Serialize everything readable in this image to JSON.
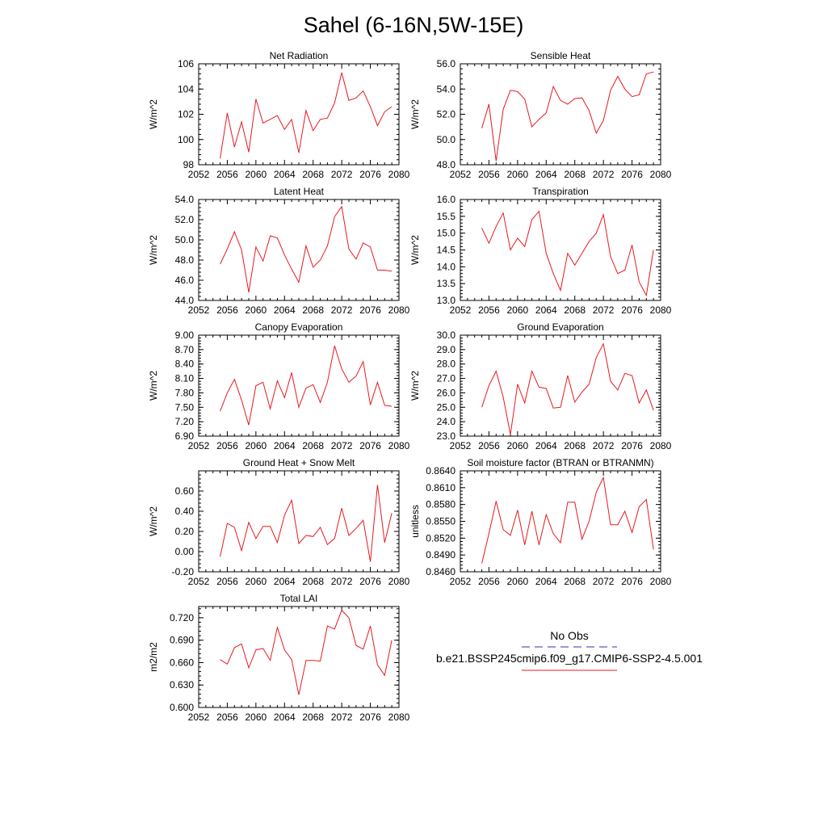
{
  "title": "Sahel (6-16N,5W-15E)",
  "x_ticks": [
    "2052",
    "2056",
    "2060",
    "2064",
    "2068",
    "2072",
    "2076",
    "2080"
  ],
  "line_color": "#e8191f",
  "chart_data": [
    {
      "type": "line",
      "title": "Net Radiation",
      "ylabel": "W/m^2",
      "xlim": [
        2052,
        2080
      ],
      "ylim": [
        98,
        106
      ],
      "yticks": [
        "98",
        "100",
        "102",
        "104",
        "106"
      ],
      "x": [
        2055,
        2056,
        2057,
        2058,
        2059,
        2060,
        2061,
        2062,
        2063,
        2064,
        2065,
        2066,
        2067,
        2068,
        2069,
        2070,
        2071,
        2072,
        2073,
        2074,
        2075,
        2076,
        2077,
        2078,
        2079
      ],
      "values": [
        98.5,
        102.1,
        99.4,
        101.4,
        99.0,
        103.2,
        101.3,
        101.6,
        101.9,
        100.8,
        101.6,
        98.95,
        102.3,
        100.7,
        101.6,
        101.7,
        102.9,
        105.3,
        103.1,
        103.3,
        103.85,
        102.6,
        101.1,
        102.2,
        102.6
      ]
    },
    {
      "type": "line",
      "title": "Sensible Heat",
      "ylabel": "W/m^2",
      "xlim": [
        2052,
        2080
      ],
      "ylim": [
        48,
        56
      ],
      "yticks": [
        "48.0",
        "50.0",
        "52.0",
        "54.0",
        "56.0"
      ],
      "x": [
        2055,
        2056,
        2057,
        2058,
        2059,
        2060,
        2061,
        2062,
        2063,
        2064,
        2065,
        2066,
        2067,
        2068,
        2069,
        2070,
        2071,
        2072,
        2073,
        2074,
        2075,
        2076,
        2077,
        2078,
        2079
      ],
      "values": [
        50.9,
        52.8,
        48.3,
        52.4,
        53.9,
        53.8,
        53.2,
        51.0,
        51.6,
        52.1,
        54.2,
        53.1,
        52.8,
        53.25,
        53.3,
        52.3,
        50.5,
        51.5,
        53.9,
        55.0,
        54.0,
        53.4,
        53.55,
        55.2,
        55.35
      ]
    },
    {
      "type": "line",
      "title": "Latent Heat",
      "ylabel": "W/m^2",
      "xlim": [
        2052,
        2080
      ],
      "ylim": [
        44,
        54
      ],
      "yticks": [
        "44.0",
        "46.0",
        "48.0",
        "50.0",
        "52.0",
        "54.0"
      ],
      "x": [
        2055,
        2056,
        2057,
        2058,
        2059,
        2060,
        2061,
        2062,
        2063,
        2064,
        2065,
        2066,
        2067,
        2068,
        2069,
        2070,
        2071,
        2072,
        2073,
        2074,
        2075,
        2076,
        2077,
        2078,
        2079
      ],
      "values": [
        47.6,
        49.1,
        50.8,
        49.0,
        44.8,
        49.3,
        47.9,
        50.4,
        50.2,
        48.5,
        47.1,
        45.8,
        49.4,
        47.3,
        48.0,
        49.4,
        52.3,
        53.3,
        49.1,
        48.1,
        49.7,
        49.3,
        47.0,
        47.0,
        46.9
      ]
    },
    {
      "type": "line",
      "title": "Transpiration",
      "ylabel": "W/m^2",
      "xlim": [
        2052,
        2080
      ],
      "ylim": [
        13,
        16
      ],
      "yticks": [
        "13.0",
        "13.5",
        "14.0",
        "14.5",
        "15.0",
        "15.5",
        "16.0"
      ],
      "x": [
        2055,
        2056,
        2057,
        2058,
        2059,
        2060,
        2061,
        2062,
        2063,
        2064,
        2065,
        2066,
        2067,
        2068,
        2069,
        2070,
        2071,
        2072,
        2073,
        2074,
        2075,
        2076,
        2077,
        2078,
        2079
      ],
      "values": [
        15.15,
        14.7,
        15.2,
        15.6,
        14.5,
        14.85,
        14.6,
        15.4,
        15.65,
        14.4,
        13.8,
        13.3,
        14.4,
        14.05,
        14.4,
        14.75,
        15.0,
        15.55,
        14.3,
        13.8,
        13.9,
        14.65,
        13.55,
        13.15,
        14.5
      ]
    },
    {
      "type": "line",
      "title": "Canopy Evaporation",
      "ylabel": "W/m^2",
      "xlim": [
        2052,
        2080
      ],
      "ylim": [
        6.9,
        9.0
      ],
      "yticks": [
        "6.90",
        "7.20",
        "7.50",
        "7.80",
        "8.10",
        "8.40",
        "8.70",
        "9.00"
      ],
      "x": [
        2055,
        2056,
        2057,
        2058,
        2059,
        2060,
        2061,
        2062,
        2063,
        2064,
        2065,
        2066,
        2067,
        2068,
        2069,
        2070,
        2071,
        2072,
        2073,
        2074,
        2075,
        2076,
        2077,
        2078,
        2079
      ],
      "values": [
        7.42,
        7.8,
        8.08,
        7.65,
        7.13,
        7.95,
        8.02,
        7.47,
        8.05,
        7.7,
        8.22,
        7.5,
        7.9,
        7.97,
        7.6,
        8.02,
        8.78,
        8.3,
        8.02,
        8.15,
        8.45,
        7.55,
        8.02,
        7.54,
        7.52
      ]
    },
    {
      "type": "line",
      "title": "Ground Evaporation",
      "ylabel": "W/m^2",
      "xlim": [
        2052,
        2080
      ],
      "ylim": [
        23,
        30
      ],
      "yticks": [
        "23.0",
        "24.0",
        "25.0",
        "26.0",
        "27.0",
        "28.0",
        "29.0",
        "30.0"
      ],
      "x": [
        2055,
        2056,
        2057,
        2058,
        2059,
        2060,
        2061,
        2062,
        2063,
        2064,
        2065,
        2066,
        2067,
        2068,
        2069,
        2070,
        2071,
        2072,
        2073,
        2074,
        2075,
        2076,
        2077,
        2078,
        2079
      ],
      "values": [
        25.0,
        26.5,
        27.5,
        25.7,
        23.1,
        26.6,
        25.3,
        27.5,
        26.4,
        26.3,
        24.95,
        25.0,
        27.2,
        25.35,
        26.05,
        26.6,
        28.45,
        29.4,
        26.8,
        26.2,
        27.35,
        27.2,
        25.3,
        26.2,
        24.8
      ]
    },
    {
      "type": "line",
      "title": "Ground Heat + Snow Melt",
      "ylabel": "W/m^2",
      "xlim": [
        2052,
        2080
      ],
      "ylim": [
        -0.2,
        0.8
      ],
      "yticks": [
        "-0.20",
        "0.00",
        "0.20",
        "0.40",
        "0.60"
      ],
      "x": [
        2055,
        2056,
        2057,
        2058,
        2059,
        2060,
        2061,
        2062,
        2063,
        2064,
        2065,
        2066,
        2067,
        2068,
        2069,
        2070,
        2071,
        2072,
        2073,
        2074,
        2075,
        2076,
        2077,
        2078,
        2079
      ],
      "values": [
        -0.05,
        0.28,
        0.24,
        0.01,
        0.29,
        0.13,
        0.25,
        0.25,
        0.09,
        0.36,
        0.51,
        0.08,
        0.16,
        0.15,
        0.24,
        0.07,
        0.13,
        0.43,
        0.16,
        0.23,
        0.31,
        -0.1,
        0.66,
        0.09,
        0.38
      ]
    },
    {
      "type": "line",
      "title": "Soil moisture factor (BTRAN or BTRANMN)",
      "ylabel": "unitless",
      "xlim": [
        2052,
        2080
      ],
      "ylim": [
        0.846,
        0.864
      ],
      "yticks": [
        "0.8460",
        "0.8490",
        "0.8520",
        "0.8550",
        "0.8580",
        "0.8610",
        "0.8640"
      ],
      "x": [
        2055,
        2056,
        2057,
        2058,
        2059,
        2060,
        2061,
        2062,
        2063,
        2064,
        2065,
        2066,
        2067,
        2068,
        2069,
        2070,
        2071,
        2072,
        2073,
        2074,
        2075,
        2076,
        2077,
        2078,
        2079
      ],
      "values": [
        0.8475,
        0.8528,
        0.8586,
        0.8535,
        0.8525,
        0.857,
        0.8508,
        0.8568,
        0.8508,
        0.8562,
        0.8528,
        0.8512,
        0.8584,
        0.8584,
        0.8518,
        0.855,
        0.8602,
        0.8628,
        0.8544,
        0.8544,
        0.8568,
        0.853,
        0.8576,
        0.8589,
        0.85
      ]
    },
    {
      "type": "line",
      "title": "Total LAI",
      "ylabel": "m2/m2",
      "xlim": [
        2052,
        2080
      ],
      "ylim": [
        0.6,
        0.735
      ],
      "yticks": [
        "0.600",
        "0.630",
        "0.660",
        "0.690",
        "0.720"
      ],
      "x": [
        2055,
        2056,
        2057,
        2058,
        2059,
        2060,
        2061,
        2062,
        2063,
        2064,
        2065,
        2066,
        2067,
        2068,
        2069,
        2070,
        2071,
        2072,
        2073,
        2074,
        2075,
        2076,
        2077,
        2078,
        2079
      ],
      "values": [
        0.664,
        0.658,
        0.68,
        0.685,
        0.653,
        0.677,
        0.679,
        0.663,
        0.707,
        0.677,
        0.664,
        0.617,
        0.663,
        0.663,
        0.662,
        0.709,
        0.705,
        0.73,
        0.72,
        0.683,
        0.678,
        0.709,
        0.657,
        0.643,
        0.69
      ]
    }
  ],
  "legend": {
    "entries": [
      {
        "label": "No Obs",
        "color": "#3333aa",
        "dashed": true
      },
      {
        "label": "b.e21.BSSP245cmip6.f09_g17.CMIP6-SSP2-4.5.001",
        "color": "#e8191f",
        "dashed": false
      }
    ]
  }
}
